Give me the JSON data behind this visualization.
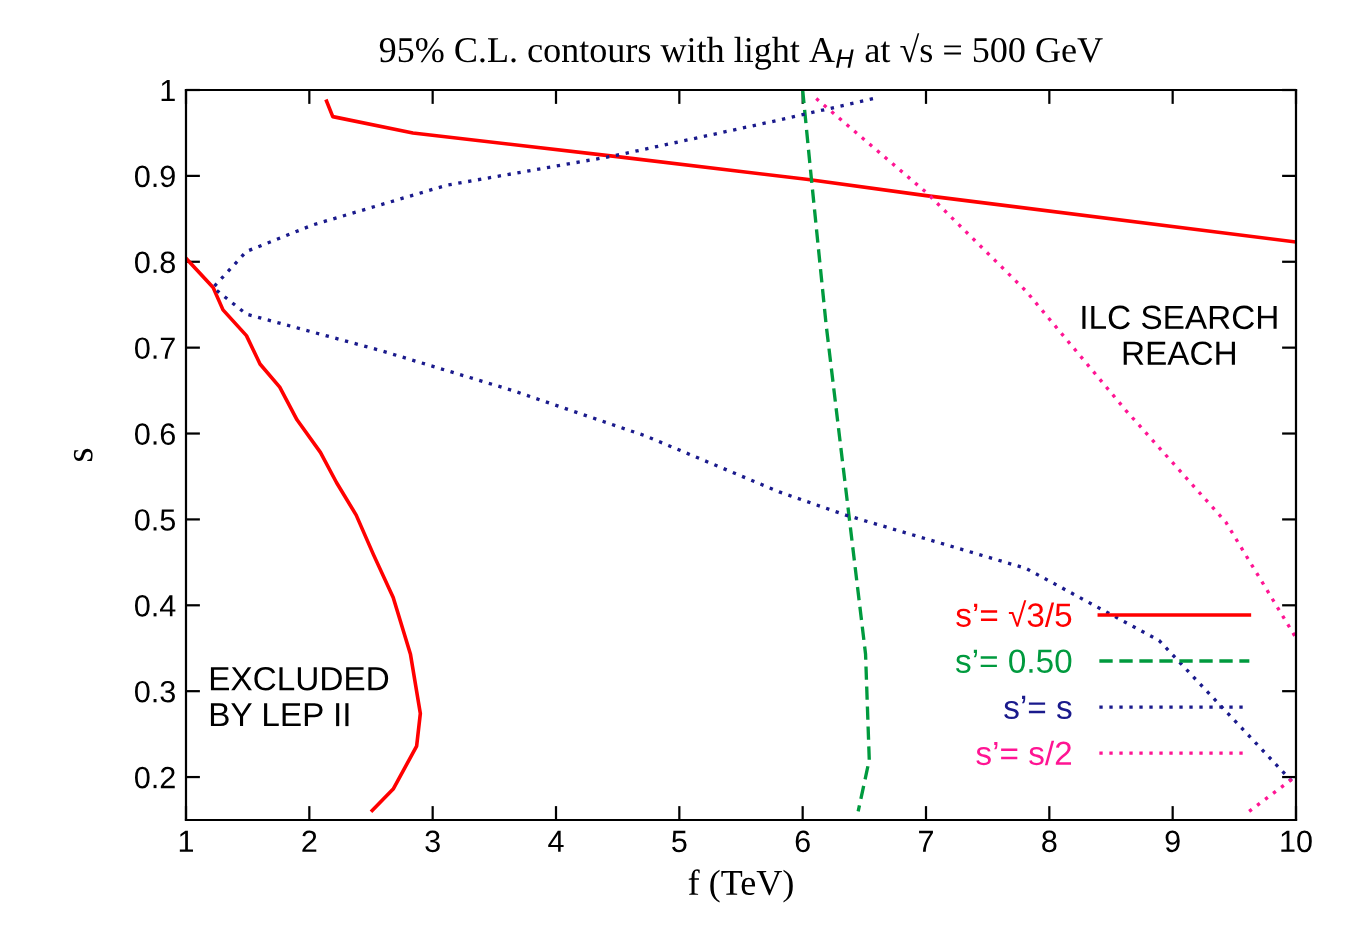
{
  "chart_data": {
    "type": "line",
    "title": "95% C.L. contours with light A$_{H}$ at √s = 500 GeV",
    "xlabel": "f (TeV)",
    "ylabel": "s",
    "xlim": [
      1,
      10
    ],
    "ylim": [
      0.15,
      1
    ],
    "xticks": [
      1,
      2,
      3,
      4,
      5,
      6,
      7,
      8,
      9,
      10
    ],
    "yticks": [
      0.2,
      0.3,
      0.4,
      0.5,
      0.6,
      0.7,
      0.8,
      0.9,
      1
    ],
    "grid": false,
    "legend": "bottom right",
    "series": [
      {
        "name": "s’= √3/5",
        "color": "#ff0000",
        "line_style": "solid",
        "x": [
          2.14,
          2.19,
          2.84,
          4.46,
          6.03,
          7.0,
          10.0,
          null,
          1.0,
          1.22,
          1.3,
          1.49,
          1.6,
          1.76,
          1.9,
          2.09,
          2.22,
          2.38,
          2.52,
          2.68,
          2.82,
          2.9,
          2.87,
          2.68,
          2.51
        ],
        "values": [
          0.987,
          0.969,
          0.95,
          0.923,
          0.896,
          0.877,
          0.823,
          null,
          0.804,
          0.77,
          0.744,
          0.714,
          0.681,
          0.654,
          0.616,
          0.578,
          0.543,
          0.505,
          0.459,
          0.409,
          0.343,
          0.274,
          0.236,
          0.186,
          0.161
        ]
      },
      {
        "name": "s’= 0.50",
        "color": "#009a3e",
        "line_style": "dashed",
        "x": [
          6.0,
          6.06,
          6.19,
          6.35,
          6.51,
          6.54,
          6.45
        ],
        "values": [
          1.0,
          0.912,
          0.727,
          0.535,
          0.343,
          0.22,
          0.16
        ]
      },
      {
        "name": "s’= s",
        "color": "#1a1a8c",
        "line_style": "dotted",
        "x": [
          6.57,
          5.81,
          4.46,
          3.11,
          2.03,
          1.49,
          1.22,
          1.49,
          2.57,
          3.65,
          4.73,
          5.81,
          6.35,
          7.81,
          8.89,
          10.0
        ],
        "values": [
          0.99,
          0.965,
          0.923,
          0.889,
          0.843,
          0.812,
          0.77,
          0.739,
          0.697,
          0.65,
          0.597,
          0.532,
          0.505,
          0.443,
          0.359,
          0.19
        ]
      },
      {
        "name": "s’= s/2",
        "color": "#ff1493",
        "line_style": "dotted",
        "x": [
          6.11,
          7.0,
          7.81,
          8.62,
          9.43,
          10.0,
          null,
          9.62,
          10.0
        ],
        "values": [
          0.99,
          0.881,
          0.766,
          0.627,
          0.497,
          0.362,
          null,
          0.16,
          0.201
        ]
      }
    ],
    "annotations": [
      "ILC SEARCH\nREACH",
      "EXCLUDED\nBY LEP II"
    ]
  }
}
